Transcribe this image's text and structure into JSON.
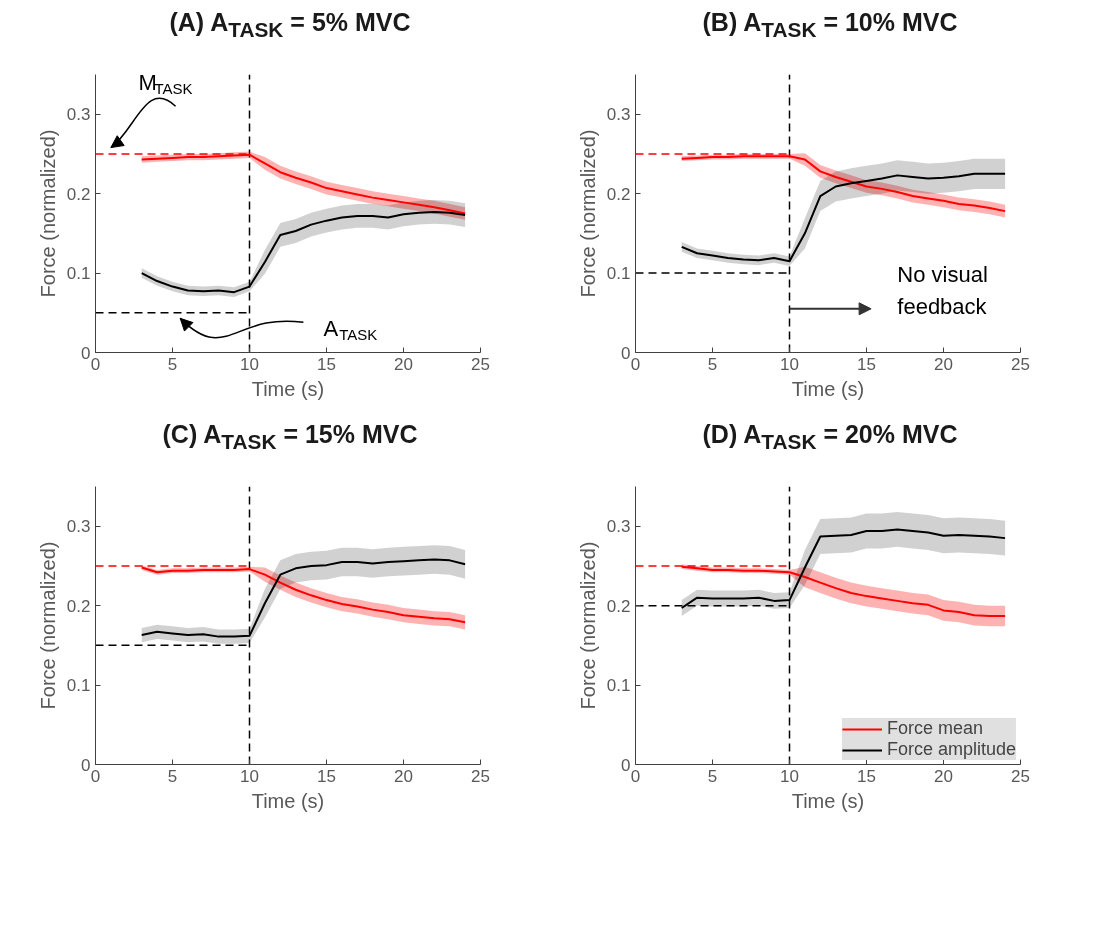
{
  "chart_data": [
    {
      "type": "line",
      "title": "(A) A$_{TASK}$ = 5% MVC",
      "xlabel": "Time (s)",
      "ylabel": "Force (normalized)",
      "xlim": [
        0,
        25
      ],
      "ylim": [
        0,
        0.35
      ],
      "xticks": [
        0,
        5,
        10,
        15,
        20,
        25
      ],
      "yticks": [
        0,
        0.1,
        0.2,
        0.3
      ],
      "grid": false,
      "legend": false,
      "line_style": "solid",
      "x": [
        3,
        4,
        5,
        6,
        7,
        8,
        9,
        10,
        11,
        12,
        13,
        14,
        15,
        16,
        17,
        18,
        19,
        20,
        21,
        22,
        23,
        24
      ],
      "series": [
        {
          "color": "#ff0000",
          "values": [
            0.243,
            0.244,
            0.245,
            0.246,
            0.246,
            0.247,
            0.248,
            0.249,
            0.238,
            0.227,
            0.22,
            0.214,
            0.207,
            0.203,
            0.199,
            0.195,
            0.192,
            0.189,
            0.186,
            0.183,
            0.179,
            0.175
          ],
          "lower": [
            0.239,
            0.24,
            0.241,
            0.242,
            0.242,
            0.243,
            0.244,
            0.245,
            0.23,
            0.219,
            0.212,
            0.206,
            0.199,
            0.195,
            0.191,
            0.187,
            0.184,
            0.181,
            0.178,
            0.175,
            0.171,
            0.167
          ],
          "upper": [
            0.247,
            0.248,
            0.249,
            0.25,
            0.25,
            0.251,
            0.252,
            0.253,
            0.246,
            0.235,
            0.228,
            0.222,
            0.215,
            0.211,
            0.207,
            0.203,
            0.2,
            0.197,
            0.194,
            0.191,
            0.187,
            0.183
          ]
        },
        {
          "color": "#000000",
          "values": [
            0.1,
            0.09,
            0.083,
            0.078,
            0.077,
            0.078,
            0.076,
            0.083,
            0.114,
            0.148,
            0.153,
            0.161,
            0.166,
            0.17,
            0.172,
            0.172,
            0.17,
            0.174,
            0.176,
            0.177,
            0.176,
            0.173
          ],
          "lower": [
            0.094,
            0.084,
            0.077,
            0.072,
            0.071,
            0.072,
            0.07,
            0.077,
            0.099,
            0.133,
            0.138,
            0.146,
            0.151,
            0.155,
            0.157,
            0.157,
            0.155,
            0.159,
            0.161,
            0.162,
            0.161,
            0.158
          ],
          "upper": [
            0.106,
            0.096,
            0.089,
            0.084,
            0.083,
            0.084,
            0.082,
            0.089,
            0.129,
            0.163,
            0.168,
            0.176,
            0.181,
            0.185,
            0.187,
            0.187,
            0.185,
            0.189,
            0.191,
            0.192,
            0.191,
            0.188
          ]
        }
      ],
      "ref_lines": [
        {
          "axis": "x",
          "value": 10,
          "color": "#000000",
          "line_style": "dashed"
        },
        {
          "axis": "y",
          "value": 0.25,
          "color": "#ff0000",
          "line_style": "dashed"
        },
        {
          "axis": "y",
          "value": 0.05,
          "color": "#000000",
          "line_style": "dashed"
        }
      ],
      "annotations": [
        {
          "text": "M$_{TASK}$",
          "x": 1,
          "y": 0.25
        },
        "A$_{TASK}$"
      ]
    },
    {
      "type": "line",
      "title": "(B) A$_{TASK}$ = 10% MVC",
      "xlabel": "Time (s)",
      "ylabel": "Force (normalized)",
      "xlim": [
        0,
        25
      ],
      "ylim": [
        0,
        0.35
      ],
      "xticks": [
        0,
        5,
        10,
        15,
        20,
        25
      ],
      "yticks": [
        0,
        0.1,
        0.2,
        0.3
      ],
      "grid": false,
      "legend": false,
      "line_style": "solid",
      "x": [
        3,
        4,
        5,
        6,
        7,
        8,
        9,
        10,
        11,
        12,
        13,
        14,
        15,
        16,
        17,
        18,
        19,
        20,
        21,
        22,
        23,
        24
      ],
      "series": [
        {
          "color": "#ff0000",
          "values": [
            0.244,
            0.245,
            0.246,
            0.246,
            0.247,
            0.247,
            0.247,
            0.247,
            0.243,
            0.228,
            0.221,
            0.215,
            0.209,
            0.206,
            0.202,
            0.197,
            0.194,
            0.191,
            0.187,
            0.185,
            0.182,
            0.178
          ],
          "lower": [
            0.241,
            0.242,
            0.243,
            0.243,
            0.244,
            0.244,
            0.244,
            0.244,
            0.235,
            0.22,
            0.213,
            0.207,
            0.201,
            0.198,
            0.194,
            0.189,
            0.186,
            0.183,
            0.179,
            0.177,
            0.174,
            0.17
          ],
          "upper": [
            0.247,
            0.248,
            0.249,
            0.249,
            0.25,
            0.25,
            0.25,
            0.25,
            0.251,
            0.236,
            0.229,
            0.223,
            0.217,
            0.214,
            0.21,
            0.205,
            0.202,
            0.199,
            0.195,
            0.193,
            0.19,
            0.186
          ]
        },
        {
          "color": "#000000",
          "values": [
            0.133,
            0.125,
            0.122,
            0.119,
            0.117,
            0.116,
            0.119,
            0.115,
            0.15,
            0.197,
            0.209,
            0.213,
            0.216,
            0.219,
            0.223,
            0.221,
            0.219,
            0.22,
            0.222,
            0.225,
            0.225,
            0.225
          ],
          "lower": [
            0.127,
            0.119,
            0.116,
            0.113,
            0.111,
            0.11,
            0.113,
            0.109,
            0.131,
            0.178,
            0.19,
            0.194,
            0.197,
            0.2,
            0.204,
            0.202,
            0.2,
            0.201,
            0.203,
            0.206,
            0.206,
            0.206
          ],
          "upper": [
            0.139,
            0.131,
            0.128,
            0.125,
            0.123,
            0.122,
            0.125,
            0.121,
            0.169,
            0.216,
            0.228,
            0.232,
            0.235,
            0.238,
            0.242,
            0.24,
            0.238,
            0.239,
            0.241,
            0.244,
            0.244,
            0.244
          ]
        }
      ],
      "ref_lines": [
        {
          "axis": "x",
          "value": 10,
          "color": "#000000",
          "line_style": "dashed"
        },
        {
          "axis": "y",
          "value": 0.25,
          "color": "#ff0000",
          "line_style": "dashed"
        },
        {
          "axis": "y",
          "value": 0.1,
          "color": "#000000",
          "line_style": "dashed"
        }
      ],
      "annotations": [
        {
          "text": "No visual\nfeedback",
          "x": 10,
          "y": 0.055
        }
      ]
    },
    {
      "type": "line",
      "title": "(C) A$_{TASK}$ = 15% MVC",
      "xlabel": "Time (s)",
      "ylabel": "Force (normalized)",
      "xlim": [
        0,
        25
      ],
      "ylim": [
        0,
        0.35
      ],
      "xticks": [
        0,
        5,
        10,
        15,
        20,
        25
      ],
      "yticks": [
        0,
        0.1,
        0.2,
        0.3
      ],
      "grid": false,
      "legend": false,
      "line_style": "solid",
      "x": [
        3,
        4,
        5,
        6,
        7,
        8,
        9,
        10,
        11,
        12,
        13,
        14,
        15,
        16,
        17,
        18,
        19,
        20,
        21,
        22,
        23,
        24
      ],
      "series": [
        {
          "color": "#ff0000",
          "values": [
            0.248,
            0.242,
            0.244,
            0.244,
            0.245,
            0.245,
            0.245,
            0.246,
            0.239,
            0.229,
            0.22,
            0.213,
            0.207,
            0.202,
            0.199,
            0.195,
            0.192,
            0.188,
            0.186,
            0.184,
            0.183,
            0.179
          ],
          "lower": [
            0.245,
            0.239,
            0.241,
            0.241,
            0.242,
            0.242,
            0.242,
            0.243,
            0.23,
            0.22,
            0.211,
            0.204,
            0.198,
            0.193,
            0.19,
            0.186,
            0.183,
            0.179,
            0.177,
            0.175,
            0.174,
            0.17
          ],
          "upper": [
            0.251,
            0.245,
            0.247,
            0.247,
            0.248,
            0.248,
            0.248,
            0.249,
            0.248,
            0.238,
            0.229,
            0.222,
            0.216,
            0.211,
            0.208,
            0.204,
            0.201,
            0.197,
            0.195,
            0.193,
            0.192,
            0.188
          ]
        },
        {
          "color": "#000000",
          "values": [
            0.163,
            0.167,
            0.165,
            0.163,
            0.164,
            0.161,
            0.161,
            0.162,
            0.203,
            0.239,
            0.247,
            0.25,
            0.251,
            0.255,
            0.255,
            0.253,
            0.255,
            0.256,
            0.257,
            0.258,
            0.257,
            0.252
          ],
          "lower": [
            0.154,
            0.158,
            0.156,
            0.154,
            0.155,
            0.152,
            0.152,
            0.153,
            0.185,
            0.221,
            0.229,
            0.232,
            0.233,
            0.237,
            0.237,
            0.235,
            0.237,
            0.238,
            0.239,
            0.24,
            0.239,
            0.234
          ],
          "upper": [
            0.172,
            0.176,
            0.174,
            0.172,
            0.173,
            0.17,
            0.17,
            0.171,
            0.221,
            0.257,
            0.265,
            0.268,
            0.269,
            0.273,
            0.273,
            0.271,
            0.273,
            0.274,
            0.275,
            0.276,
            0.275,
            0.27
          ]
        }
      ],
      "ref_lines": [
        {
          "axis": "x",
          "value": 10,
          "color": "#000000",
          "line_style": "dashed"
        },
        {
          "axis": "y",
          "value": 0.25,
          "color": "#ff0000",
          "line_style": "dashed"
        },
        {
          "axis": "y",
          "value": 0.15,
          "color": "#000000",
          "line_style": "dashed"
        }
      ]
    },
    {
      "type": "line",
      "title": "(D) A$_{TASK}$ = 20% MVC",
      "xlabel": "Time (s)",
      "ylabel": "Force (normalized)",
      "xlim": [
        0,
        25
      ],
      "ylim": [
        0,
        0.35
      ],
      "xticks": [
        0,
        5,
        10,
        15,
        20,
        25
      ],
      "yticks": [
        0,
        0.1,
        0.2,
        0.3
      ],
      "grid": false,
      "legend": "bottom right",
      "line_style": "solid",
      "x": [
        3,
        4,
        5,
        6,
        7,
        8,
        9,
        10,
        11,
        12,
        13,
        14,
        15,
        16,
        17,
        18,
        19,
        20,
        21,
        22,
        23,
        24
      ],
      "series": [
        {
          "name": "Force mean",
          "color": "#ff0000",
          "values": [
            0.249,
            0.247,
            0.245,
            0.245,
            0.244,
            0.244,
            0.243,
            0.242,
            0.236,
            0.229,
            0.222,
            0.216,
            0.212,
            0.209,
            0.206,
            0.203,
            0.201,
            0.194,
            0.192,
            0.188,
            0.187,
            0.187
          ],
          "lower": [
            0.246,
            0.244,
            0.242,
            0.242,
            0.241,
            0.241,
            0.24,
            0.239,
            0.223,
            0.216,
            0.209,
            0.203,
            0.199,
            0.196,
            0.193,
            0.19,
            0.188,
            0.181,
            0.179,
            0.175,
            0.174,
            0.174
          ],
          "upper": [
            0.252,
            0.25,
            0.248,
            0.248,
            0.247,
            0.247,
            0.246,
            0.245,
            0.249,
            0.242,
            0.235,
            0.229,
            0.225,
            0.222,
            0.219,
            0.216,
            0.214,
            0.207,
            0.205,
            0.201,
            0.2,
            0.2
          ]
        },
        {
          "name": "Force amplitude",
          "color": "#000000",
          "values": [
            0.197,
            0.21,
            0.209,
            0.209,
            0.209,
            0.21,
            0.206,
            0.207,
            0.248,
            0.287,
            0.288,
            0.289,
            0.294,
            0.294,
            0.296,
            0.294,
            0.292,
            0.288,
            0.289,
            0.288,
            0.287,
            0.285
          ],
          "lower": [
            0.187,
            0.2,
            0.199,
            0.199,
            0.199,
            0.2,
            0.196,
            0.197,
            0.226,
            0.265,
            0.266,
            0.267,
            0.272,
            0.272,
            0.274,
            0.272,
            0.27,
            0.266,
            0.267,
            0.266,
            0.265,
            0.263
          ],
          "upper": [
            0.207,
            0.22,
            0.219,
            0.219,
            0.219,
            0.22,
            0.216,
            0.217,
            0.27,
            0.309,
            0.31,
            0.311,
            0.316,
            0.316,
            0.318,
            0.316,
            0.314,
            0.31,
            0.311,
            0.31,
            0.309,
            0.307
          ]
        }
      ],
      "ref_lines": [
        {
          "axis": "x",
          "value": 10,
          "color": "#000000",
          "line_style": "dashed"
        },
        {
          "axis": "y",
          "value": 0.25,
          "color": "#ff0000",
          "line_style": "dashed"
        },
        {
          "axis": "y",
          "value": 0.2,
          "color": "#000000",
          "line_style": "dashed"
        }
      ]
    }
  ]
}
